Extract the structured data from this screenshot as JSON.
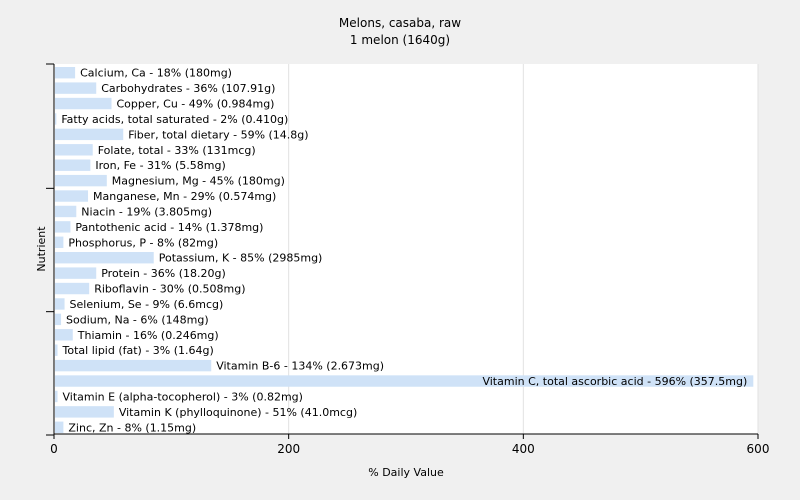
{
  "chart_data": {
    "type": "bar",
    "orientation": "horizontal",
    "title": "Melons, casaba, raw",
    "subtitle": "1 melon (1640g)",
    "xlabel": "% Daily Value",
    "ylabel": "Nutrient",
    "xlim": [
      0,
      600
    ],
    "xticks": [
      0,
      200,
      400,
      600
    ],
    "grid": true,
    "bar_color": "#cfe2f7",
    "categories": [
      "Calcium, Ca",
      "Carbohydrates",
      "Copper, Cu",
      "Fatty acids, total saturated",
      "Fiber, total dietary",
      "Folate, total",
      "Iron, Fe",
      "Magnesium, Mg",
      "Manganese, Mn",
      "Niacin",
      "Pantothenic acid",
      "Phosphorus, P",
      "Potassium, K",
      "Protein",
      "Riboflavin",
      "Selenium, Se",
      "Sodium, Na",
      "Thiamin",
      "Total lipid (fat)",
      "Vitamin B-6",
      "Vitamin C, total ascorbic acid",
      "Vitamin E (alpha-tocopherol)",
      "Vitamin K (phylloquinone)",
      "Zinc, Zn"
    ],
    "values": [
      18,
      36,
      49,
      2,
      59,
      33,
      31,
      45,
      29,
      19,
      14,
      8,
      85,
      36,
      30,
      9,
      6,
      16,
      3,
      134,
      596,
      3,
      51,
      8
    ],
    "labels": [
      "Calcium, Ca - 18% (180mg)",
      "Carbohydrates - 36% (107.91g)",
      "Copper, Cu - 49% (0.984mg)",
      "Fatty acids, total saturated - 2% (0.410g)",
      "Fiber, total dietary - 59% (14.8g)",
      "Folate, total - 33% (131mcg)",
      "Iron, Fe - 31% (5.58mg)",
      "Magnesium, Mg - 45% (180mg)",
      "Manganese, Mn - 29% (0.574mg)",
      "Niacin - 19% (3.805mg)",
      "Pantothenic acid - 14% (1.378mg)",
      "Phosphorus, P - 8% (82mg)",
      "Potassium, K - 85% (2985mg)",
      "Protein - 36% (18.20g)",
      "Riboflavin - 30% (0.508mg)",
      "Selenium, Se - 9% (6.6mcg)",
      "Sodium, Na - 6% (148mg)",
      "Thiamin - 16% (0.246mg)",
      "Total lipid (fat) - 3% (1.64g)",
      "Vitamin B-6 - 134% (2.673mg)",
      "Vitamin C, total ascorbic acid - 596% (357.5mg)",
      "Vitamin E (alpha-tocopherol) - 3% (0.82mg)",
      "Vitamin K (phylloquinone) - 51% (41.0mcg)",
      "Zinc, Zn - 8% (1.15mg)"
    ]
  }
}
